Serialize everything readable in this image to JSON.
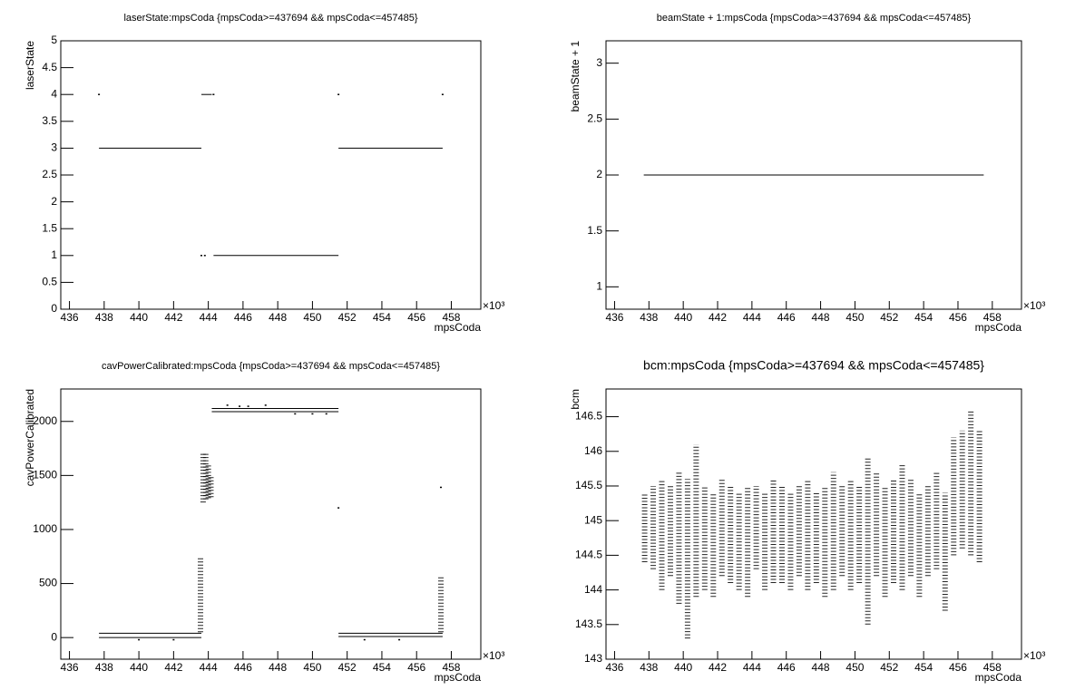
{
  "chart_data": [
    {
      "type": "scatter",
      "title": "laserState:mpsCoda {mpsCoda>=437694 && mpsCoda<=457485}",
      "x_label": "mpsCoda",
      "y_label": "laserState",
      "x_multiplier": "×10³",
      "color": "#000000",
      "xlim": [
        435.5,
        459.7
      ],
      "xticks": [
        436,
        438,
        440,
        442,
        444,
        446,
        448,
        450,
        452,
        454,
        456,
        458
      ],
      "ylim": [
        0,
        5
      ],
      "yticks": [
        0,
        0.5,
        1,
        1.5,
        2,
        2.5,
        3,
        3.5,
        4,
        4.5,
        5
      ],
      "runs": [
        {
          "x": [
            437.7,
            443.6
          ],
          "y": 3
        },
        {
          "x": [
            443.6,
            444.2
          ],
          "y": 4
        },
        {
          "x": [
            444.3,
            451.5
          ],
          "y": 1
        },
        {
          "x": [
            451.5,
            457.5
          ],
          "y": 3
        }
      ],
      "points": {
        "x": [
          437.7,
          444.3,
          451.5,
          457.5,
          443.6,
          443.8
        ],
        "y": [
          4,
          4,
          4,
          4,
          1,
          1
        ]
      }
    },
    {
      "type": "scatter",
      "title": "beamState + 1:mpsCoda {mpsCoda>=437694 && mpsCoda<=457485}",
      "x_label": "mpsCoda",
      "y_label": "beamState + 1",
      "x_multiplier": "×10³",
      "color": "#000000",
      "xlim": [
        435.5,
        459.7
      ],
      "xticks": [
        436,
        438,
        440,
        442,
        444,
        446,
        448,
        450,
        452,
        454,
        456,
        458
      ],
      "ylim": [
        0.8,
        3.2
      ],
      "yticks": [
        1,
        1.5,
        2,
        2.5,
        3
      ],
      "runs": [
        {
          "x": [
            437.7,
            457.5
          ],
          "y": 2
        }
      ]
    },
    {
      "type": "scatter",
      "title": "cavPowerCalibrated:mpsCoda {mpsCoda>=437694 && mpsCoda<=457485}",
      "x_label": "mpsCoda",
      "y_label": "cavPowerCalibrated",
      "x_multiplier": "×10³",
      "color": "#000000",
      "xlim": [
        435.5,
        459.7
      ],
      "xticks": [
        436,
        438,
        440,
        442,
        444,
        446,
        448,
        450,
        452,
        454,
        456,
        458
      ],
      "ylim": [
        -200,
        2300
      ],
      "yticks": [
        0,
        500,
        1000,
        1500,
        2000
      ],
      "runs": [
        {
          "x": [
            437.7,
            443.6
          ],
          "y": 40
        },
        {
          "x": [
            437.7,
            443.6
          ],
          "y": 0
        },
        {
          "x": [
            444.2,
            451.5
          ],
          "y": 2120
        },
        {
          "x": [
            444.2,
            451.5
          ],
          "y": 2090
        },
        {
          "x": [
            451.5,
            457.5
          ],
          "y": 40
        },
        {
          "x": [
            451.5,
            457.5
          ],
          "y": 10
        }
      ],
      "points": {
        "x": [
          457.4,
          451.5,
          445.1,
          445.8,
          446.3,
          447.3,
          449.0,
          450.0,
          450.8,
          440.0,
          442.0,
          453.0,
          455.0
        ],
        "y": [
          1390,
          1200,
          2150,
          2140,
          2140,
          2150,
          2070,
          2070,
          2070,
          -20,
          -20,
          -20,
          -20
        ]
      },
      "bands": {
        "x": [
          443.55,
          443.7,
          443.85,
          444.0,
          444.15,
          457.4
        ],
        "low": [
          50,
          1250,
          1280,
          1290,
          1300,
          50
        ],
        "high": [
          750,
          1720,
          1700,
          1600,
          1500,
          560
        ]
      }
    },
    {
      "type": "scatter",
      "title": "bcm:mpsCoda {mpsCoda>=437694 && mpsCoda<=457485}",
      "x_label": "mpsCoda",
      "y_label": "bcm",
      "x_multiplier": "×10³",
      "color": "#000000",
      "xlim": [
        435.5,
        459.7
      ],
      "xticks": [
        436,
        438,
        440,
        442,
        444,
        446,
        448,
        450,
        452,
        454,
        456,
        458
      ],
      "ylim": [
        143,
        146.9
      ],
      "yticks": [
        143,
        143.5,
        144,
        144.5,
        145,
        145.5,
        146,
        146.5
      ],
      "bands": {
        "x": [
          437.75,
          438.25,
          438.75,
          439.25,
          439.75,
          440.25,
          440.75,
          441.25,
          441.75,
          442.25,
          442.75,
          443.25,
          443.75,
          444.25,
          444.75,
          445.25,
          445.75,
          446.25,
          446.75,
          447.25,
          447.75,
          448.25,
          448.75,
          449.25,
          449.75,
          450.25,
          450.75,
          451.25,
          451.75,
          452.25,
          452.75,
          453.25,
          453.75,
          454.25,
          454.75,
          455.25,
          455.75,
          456.25,
          456.75,
          457.25
        ],
        "low": [
          144.4,
          144.3,
          144.0,
          144.2,
          143.8,
          143.3,
          143.9,
          144.0,
          143.9,
          144.2,
          144.1,
          144.0,
          143.9,
          144.3,
          144.0,
          144.1,
          144.1,
          144.0,
          144.2,
          144.0,
          144.1,
          143.9,
          144.0,
          144.2,
          144.0,
          144.1,
          143.5,
          144.2,
          143.9,
          144.1,
          144.0,
          144.2,
          143.9,
          144.2,
          144.3,
          143.7,
          144.5,
          144.6,
          144.5,
          144.4
        ],
        "high": [
          145.4,
          145.5,
          145.6,
          145.5,
          145.7,
          145.6,
          146.1,
          145.5,
          145.4,
          145.6,
          145.5,
          145.4,
          145.5,
          145.5,
          145.4,
          145.6,
          145.5,
          145.4,
          145.5,
          145.6,
          145.4,
          145.5,
          145.7,
          145.5,
          145.6,
          145.5,
          145.9,
          145.7,
          145.5,
          145.6,
          145.8,
          145.6,
          145.4,
          145.5,
          145.7,
          145.4,
          146.2,
          146.3,
          146.6,
          146.3
        ]
      }
    }
  ]
}
